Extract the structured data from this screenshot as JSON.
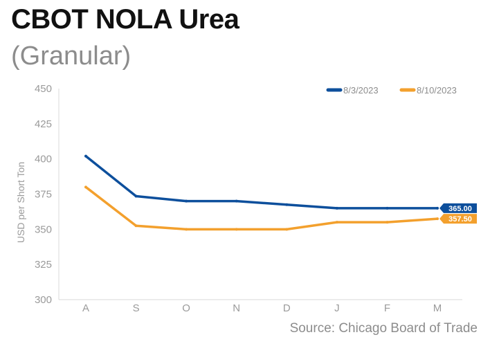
{
  "title": "CBOT NOLA Urea",
  "subtitle": "(Granular)",
  "source": "Source: Chicago Board of Trade",
  "chart_data": {
    "type": "line",
    "categories": [
      "A",
      "S",
      "O",
      "N",
      "D",
      "J",
      "F",
      "M"
    ],
    "ylabel": "USD per Short Ton",
    "ylim": [
      300,
      450
    ],
    "yticks": [
      300,
      325,
      350,
      375,
      400,
      425,
      450
    ],
    "grid": false,
    "legend": "top-right",
    "series": [
      {
        "name": "8/3/2023",
        "color": "#0d4f9c",
        "values": [
          402,
          373.5,
          370,
          370,
          367.5,
          365,
          365,
          365
        ],
        "end_label": "365.00"
      },
      {
        "name": "8/10/2023",
        "color": "#f3a02d",
        "values": [
          380,
          352.5,
          350,
          350,
          350,
          355,
          355,
          357.5
        ],
        "end_label": "357.50"
      }
    ]
  }
}
